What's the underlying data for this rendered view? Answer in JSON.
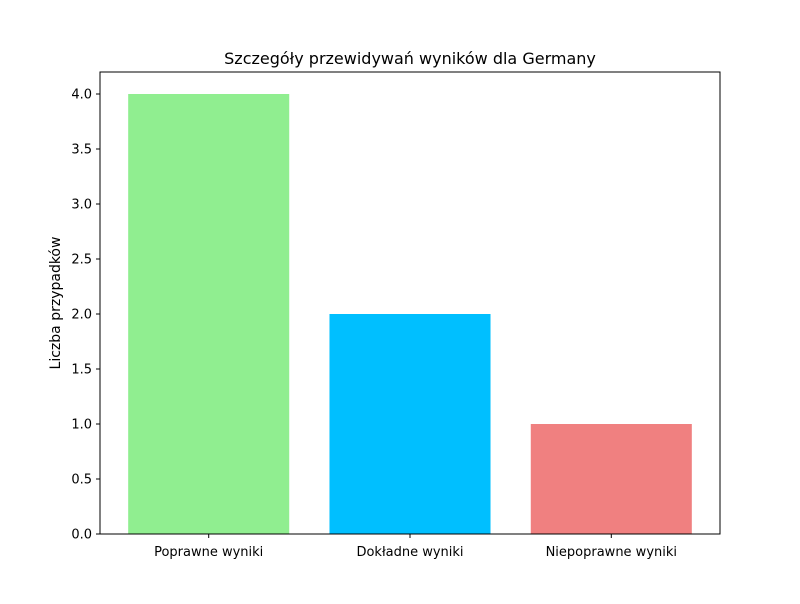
{
  "chart_data": {
    "type": "bar",
    "title": "Szczegóły przewidywań wyników dla Germany",
    "xlabel": "",
    "ylabel": "Liczba przypadków",
    "categories": [
      "Poprawne wyniki",
      "Dokładne wyniki",
      "Niepoprawne wyniki"
    ],
    "values": [
      4,
      2,
      1
    ],
    "colors": [
      "#90ee90",
      "#00bfff",
      "#f08080"
    ],
    "ylim": [
      0,
      4.2
    ],
    "yticks": [
      "0.0",
      "0.5",
      "1.0",
      "1.5",
      "2.0",
      "2.5",
      "3.0",
      "3.5",
      "4.0"
    ],
    "grid": false,
    "legend": "none"
  }
}
